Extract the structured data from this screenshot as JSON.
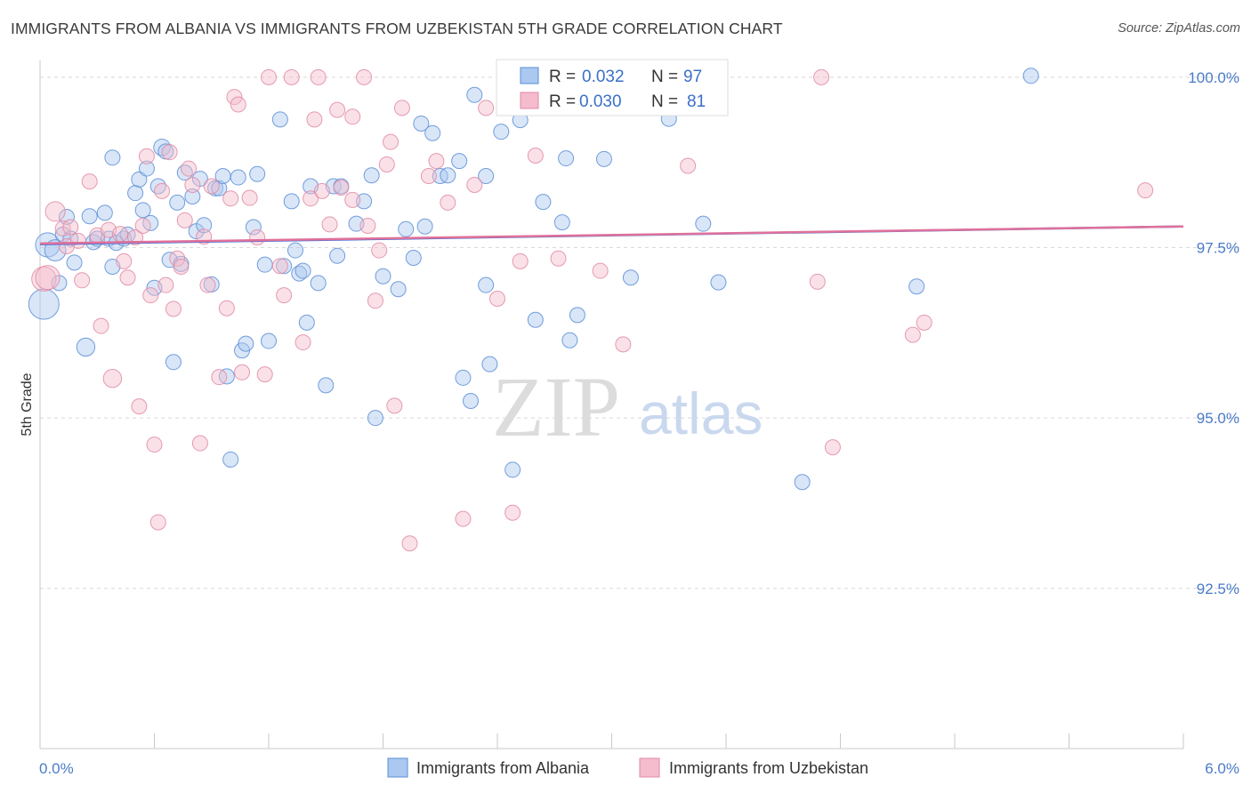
{
  "title": "IMMIGRANTS FROM ALBANIA VS IMMIGRANTS FROM UZBEKISTAN 5TH GRADE CORRELATION CHART",
  "source": "Source: ZipAtlas.com",
  "watermark": {
    "part1": "ZIP",
    "part2": "atlas"
  },
  "chart_data": {
    "type": "scatter",
    "title": "IMMIGRANTS FROM ALBANIA VS IMMIGRANTS FROM UZBEKISTAN 5TH GRADE CORRELATION CHART",
    "xlabel": "",
    "ylabel": "5th Grade",
    "xlim": [
      0.0,
      6.0
    ],
    "ylim": [
      90.15,
      100.35
    ],
    "x_tick_labels": [
      "0.0%",
      "6.0%"
    ],
    "y_ticks": [
      {
        "value": 100.0,
        "label": "100.0%"
      },
      {
        "value": 97.5,
        "label": "97.5%"
      },
      {
        "value": 95.0,
        "label": "95.0%"
      },
      {
        "value": 92.5,
        "label": "92.5%"
      }
    ],
    "grid": true,
    "legend_position": "top-center",
    "series": [
      {
        "name": "Immigrants from Albania",
        "color": "#5b8ed6",
        "fill": "#aac8f0",
        "R": "0.032",
        "N": "97",
        "trend": [
          [
            0.0,
            97.55
          ],
          [
            6.0,
            97.81
          ]
        ],
        "points": [
          [
            0.02,
            96.67,
            2
          ],
          [
            0.04,
            97.54,
            1.6
          ],
          [
            0.08,
            97.46,
            1.4
          ],
          [
            0.1,
            96.98,
            1
          ],
          [
            0.12,
            97.69,
            1
          ],
          [
            0.14,
            97.95,
            1
          ],
          [
            0.16,
            97.63,
            1
          ],
          [
            0.18,
            97.28,
            1
          ],
          [
            0.24,
            96.04,
            1.2
          ],
          [
            0.26,
            97.96,
            1
          ],
          [
            0.28,
            97.58,
            1
          ],
          [
            0.3,
            97.63,
            1
          ],
          [
            0.34,
            98.01,
            1
          ],
          [
            0.36,
            97.63,
            1
          ],
          [
            0.38,
            98.82,
            1
          ],
          [
            0.38,
            97.22,
            1
          ],
          [
            0.4,
            97.57,
            1
          ],
          [
            0.44,
            97.63,
            1
          ],
          [
            0.46,
            97.69,
            1
          ],
          [
            0.5,
            98.3,
            1
          ],
          [
            0.52,
            98.5,
            1
          ],
          [
            0.54,
            98.05,
            1
          ],
          [
            0.56,
            98.66,
            1
          ],
          [
            0.58,
            97.86,
            1
          ],
          [
            0.6,
            96.91,
            1
          ],
          [
            0.62,
            98.4,
            1
          ],
          [
            0.64,
            98.97,
            1.1
          ],
          [
            0.66,
            98.91,
            1
          ],
          [
            0.68,
            97.32,
            1
          ],
          [
            0.7,
            95.82,
            1
          ],
          [
            0.72,
            98.16,
            1
          ],
          [
            0.74,
            97.26,
            1
          ],
          [
            0.76,
            98.6,
            1
          ],
          [
            0.8,
            98.25,
            1
          ],
          [
            0.82,
            97.74,
            1
          ],
          [
            0.84,
            98.51,
            1
          ],
          [
            0.86,
            97.83,
            1
          ],
          [
            0.9,
            96.96,
            1
          ],
          [
            0.92,
            98.37,
            1
          ],
          [
            0.94,
            98.37,
            1
          ],
          [
            0.96,
            98.55,
            1
          ],
          [
            0.98,
            95.61,
            1
          ],
          [
            1.0,
            94.39,
            1
          ],
          [
            1.04,
            98.53,
            1
          ],
          [
            1.06,
            95.99,
            1
          ],
          [
            1.08,
            96.09,
            1
          ],
          [
            1.12,
            97.8,
            1
          ],
          [
            1.14,
            98.58,
            1
          ],
          [
            1.18,
            97.25,
            1
          ],
          [
            1.2,
            96.13,
            1
          ],
          [
            1.26,
            99.38,
            1
          ],
          [
            1.28,
            97.23,
            1
          ],
          [
            1.32,
            98.18,
            1
          ],
          [
            1.34,
            97.46,
            1
          ],
          [
            1.36,
            97.12,
            1
          ],
          [
            1.38,
            97.16,
            1
          ],
          [
            1.4,
            96.4,
            1
          ],
          [
            1.42,
            98.4,
            1
          ],
          [
            1.46,
            96.98,
            1
          ],
          [
            1.5,
            95.48,
            1
          ],
          [
            1.54,
            98.4,
            1
          ],
          [
            1.56,
            97.38,
            1
          ],
          [
            1.58,
            98.4,
            1
          ],
          [
            1.66,
            97.85,
            1
          ],
          [
            1.7,
            98.18,
            1
          ],
          [
            1.74,
            98.56,
            1
          ],
          [
            1.76,
            95.0,
            1
          ],
          [
            1.8,
            97.08,
            1
          ],
          [
            1.88,
            96.89,
            1
          ],
          [
            1.92,
            97.77,
            1
          ],
          [
            1.96,
            97.35,
            1
          ],
          [
            2.0,
            99.32,
            1
          ],
          [
            2.02,
            97.81,
            1
          ],
          [
            2.06,
            99.18,
            1
          ],
          [
            2.1,
            98.55,
            1
          ],
          [
            2.14,
            98.56,
            1
          ],
          [
            2.2,
            98.77,
            1
          ],
          [
            2.22,
            95.59,
            1
          ],
          [
            2.26,
            95.25,
            1
          ],
          [
            2.28,
            99.74,
            1
          ],
          [
            2.34,
            96.95,
            1
          ],
          [
            2.34,
            98.55,
            1
          ],
          [
            2.36,
            95.79,
            1
          ],
          [
            2.42,
            99.2,
            1
          ],
          [
            2.48,
            94.24,
            1
          ],
          [
            2.52,
            99.37,
            1
          ],
          [
            2.6,
            96.44,
            1
          ],
          [
            2.64,
            98.17,
            1
          ],
          [
            2.74,
            97.87,
            1
          ],
          [
            2.76,
            98.81,
            1
          ],
          [
            2.78,
            96.14,
            1
          ],
          [
            2.82,
            96.51,
            1
          ],
          [
            2.96,
            98.8,
            1
          ],
          [
            3.1,
            97.06,
            1
          ],
          [
            3.3,
            99.39,
            1
          ],
          [
            3.48,
            97.85,
            1
          ],
          [
            3.56,
            96.99,
            1
          ],
          [
            4.0,
            94.06,
            1
          ],
          [
            4.6,
            96.93,
            1
          ],
          [
            5.2,
            100.02,
            1
          ]
        ]
      },
      {
        "name": "Immigrants from Uzbekistan",
        "color": "#e08aa5",
        "fill": "#f4bccd",
        "R": "0.030",
        "N": "81",
        "trend": [
          [
            0.0,
            97.56
          ],
          [
            6.0,
            97.81
          ]
        ],
        "points": [
          [
            0.02,
            97.04,
            1.6
          ],
          [
            0.04,
            97.06,
            1.6
          ],
          [
            0.08,
            98.03,
            1.3
          ],
          [
            0.12,
            97.78,
            1
          ],
          [
            0.14,
            97.52,
            1
          ],
          [
            0.16,
            97.8,
            1
          ],
          [
            0.2,
            97.6,
            1
          ],
          [
            0.22,
            97.02,
            1
          ],
          [
            0.26,
            98.47,
            1
          ],
          [
            0.3,
            97.68,
            1
          ],
          [
            0.32,
            96.35,
            1
          ],
          [
            0.36,
            97.76,
            1
          ],
          [
            0.38,
            95.58,
            1.2
          ],
          [
            0.42,
            97.7,
            1
          ],
          [
            0.44,
            97.3,
            1
          ],
          [
            0.46,
            97.06,
            1
          ],
          [
            0.5,
            97.65,
            1
          ],
          [
            0.52,
            95.17,
            1
          ],
          [
            0.54,
            97.82,
            1
          ],
          [
            0.56,
            98.84,
            1
          ],
          [
            0.58,
            96.8,
            1
          ],
          [
            0.6,
            94.61,
            1
          ],
          [
            0.62,
            93.47,
            1
          ],
          [
            0.64,
            98.33,
            1
          ],
          [
            0.66,
            96.95,
            1
          ],
          [
            0.68,
            98.9,
            1
          ],
          [
            0.7,
            96.6,
            1
          ],
          [
            0.72,
            97.34,
            1
          ],
          [
            0.74,
            97.22,
            1
          ],
          [
            0.76,
            97.9,
            1
          ],
          [
            0.78,
            98.66,
            1
          ],
          [
            0.8,
            98.42,
            1
          ],
          [
            0.84,
            94.63,
            1
          ],
          [
            0.86,
            97.66,
            1
          ],
          [
            0.88,
            96.95,
            1
          ],
          [
            0.9,
            98.4,
            1
          ],
          [
            0.94,
            95.6,
            1
          ],
          [
            0.98,
            96.61,
            1
          ],
          [
            1.0,
            98.22,
            1
          ],
          [
            1.02,
            99.71,
            1
          ],
          [
            1.04,
            99.6,
            1
          ],
          [
            1.06,
            95.67,
            1
          ],
          [
            1.1,
            98.23,
            1
          ],
          [
            1.14,
            97.65,
            1
          ],
          [
            1.18,
            95.64,
            1
          ],
          [
            1.2,
            100.0,
            1
          ],
          [
            1.26,
            97.23,
            1
          ],
          [
            1.28,
            96.8,
            1
          ],
          [
            1.32,
            100.0,
            1
          ],
          [
            1.38,
            96.11,
            1
          ],
          [
            1.42,
            98.22,
            1
          ],
          [
            1.44,
            99.38,
            1
          ],
          [
            1.46,
            100.0,
            1
          ],
          [
            1.48,
            98.33,
            1
          ],
          [
            1.52,
            97.84,
            1
          ],
          [
            1.56,
            99.52,
            1
          ],
          [
            1.58,
            98.38,
            1
          ],
          [
            1.64,
            98.2,
            1
          ],
          [
            1.64,
            99.42,
            1
          ],
          [
            1.7,
            100.0,
            1
          ],
          [
            1.72,
            97.82,
            1
          ],
          [
            1.76,
            96.72,
            1
          ],
          [
            1.78,
            97.46,
            1
          ],
          [
            1.82,
            98.72,
            1
          ],
          [
            1.84,
            99.05,
            1
          ],
          [
            1.86,
            95.18,
            1
          ],
          [
            1.9,
            99.55,
            1
          ],
          [
            1.94,
            93.16,
            1
          ],
          [
            2.04,
            98.55,
            1
          ],
          [
            2.08,
            98.77,
            1
          ],
          [
            2.14,
            98.16,
            1
          ],
          [
            2.22,
            93.52,
            1
          ],
          [
            2.28,
            98.42,
            1
          ],
          [
            2.34,
            99.55,
            1
          ],
          [
            2.4,
            96.75,
            1
          ],
          [
            2.48,
            93.61,
            1
          ],
          [
            2.52,
            97.3,
            1
          ],
          [
            2.6,
            98.85,
            1
          ],
          [
            2.72,
            97.34,
            1
          ],
          [
            2.94,
            97.16,
            1
          ],
          [
            3.06,
            96.08,
            1
          ],
          [
            3.4,
            98.7,
            1
          ],
          [
            3.52,
            99.57,
            1
          ],
          [
            4.08,
            97.0,
            1
          ],
          [
            4.1,
            100.0,
            1
          ],
          [
            4.16,
            94.57,
            1
          ],
          [
            4.58,
            96.22,
            1
          ],
          [
            4.64,
            96.4,
            1
          ],
          [
            5.8,
            98.34,
            1
          ]
        ]
      }
    ]
  },
  "legend": {
    "items": [
      {
        "r_label": "R =",
        "r_value": "0.032",
        "n_label": "N =",
        "n_value": "97"
      },
      {
        "r_label": "R =",
        "r_value": "0.030",
        "n_label": "N =",
        "n_value": "81"
      }
    ]
  },
  "bottom_legend": [
    "Immigrants from Albania",
    "Immigrants from Uzbekistan"
  ]
}
